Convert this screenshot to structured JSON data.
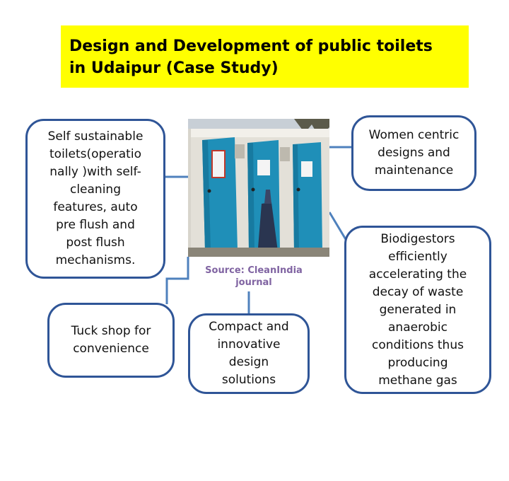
{
  "title": "Design and Development of  public toilets\nin Udaipur (Case Study)",
  "source_caption": "Source: CleanIndia\njournal",
  "boxes": {
    "self_sustainable": "Self sustainable\ntoilets(operatio\nnally )with self-\ncleaning\nfeatures, auto\npre flush and\npost flush\nmechanisms.",
    "women_centric": "Women centric\ndesigns  and\nmaintenance",
    "biodigestors": "Biodigestors\nefficiently\naccelerating the\ndecay of waste\ngenerated in\nanaerobic\nconditions thus\nproducing\nmethane gas",
    "tuck_shop": "Tuck shop for\nconvenience",
    "compact": "Compact and\ninnovative\ndesign\nsolutions"
  },
  "colors": {
    "banner": "#ffff00",
    "box_border": "#2f5597",
    "connector": "#4f81bd",
    "source_text": "#8064a2",
    "toilet_door": "#1f8fb8"
  },
  "photo": {
    "description_icon": "public-toilet-photo"
  }
}
